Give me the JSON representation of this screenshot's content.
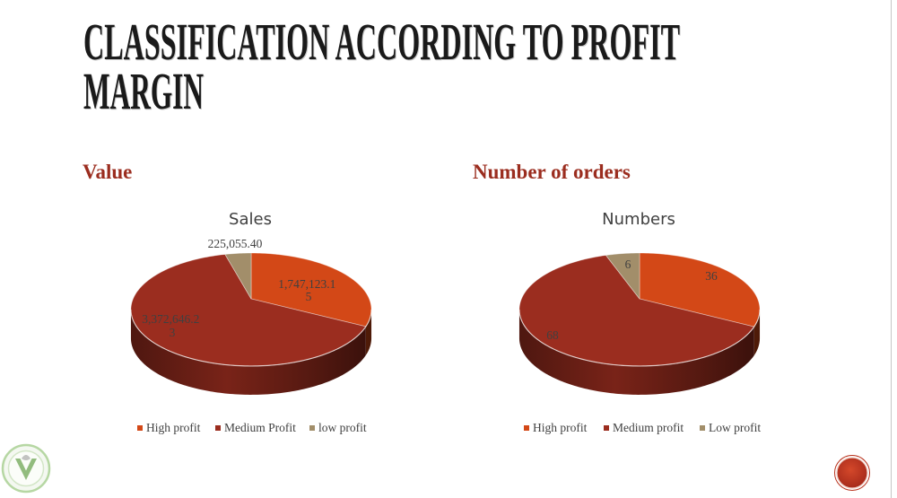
{
  "slide": {
    "title_lines": [
      "CLASSIFICATION ACCORDING TO PROFIT",
      "MARGIN"
    ],
    "colors": {
      "title": "#1A1A1A",
      "heading": "#9B2D1F",
      "chart_text": "#404040",
      "slide_marker": "#B8321C",
      "logo_green": "#7FB069"
    },
    "icons": {
      "logo": "v-badge-logo-icon",
      "slide_marker": "red-circle-marker"
    }
  },
  "sections": {
    "left_heading": "Value",
    "right_heading": "Number of orders"
  },
  "chart_data": [
    {
      "type": "pie",
      "style": "3d",
      "title": "Sales",
      "categories": [
        "High profit",
        "Medium Profit",
        "low profit"
      ],
      "values": [
        1747123.15,
        3372646.23,
        225055.4
      ],
      "data_labels": [
        [
          "1,747,123.1",
          "5"
        ],
        [
          "3,372,646.2",
          "3"
        ],
        [
          "225,055.40"
        ]
      ],
      "colors": [
        "#D34817",
        "#9B2D1F",
        "#A28E6A"
      ],
      "legend_position": "bottom"
    },
    {
      "type": "pie",
      "style": "3d",
      "title": "Numbers",
      "categories": [
        "High profit",
        "Medium profit",
        "Low profit"
      ],
      "values": [
        36,
        68,
        6
      ],
      "data_labels": [
        [
          "36"
        ],
        [
          "68"
        ],
        [
          "6"
        ]
      ],
      "colors": [
        "#D34817",
        "#9B2D1F",
        "#A28E6A"
      ],
      "legend_position": "bottom"
    }
  ]
}
